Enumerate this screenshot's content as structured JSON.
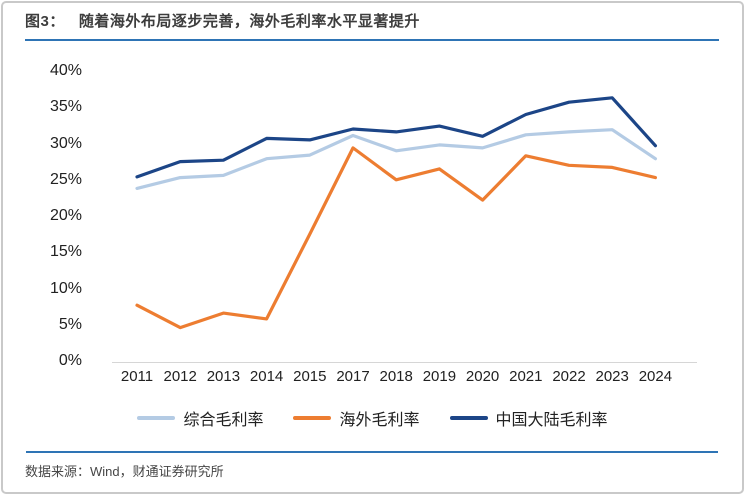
{
  "panel": {
    "figure_label": "图3：",
    "title": "随着海外布局逐步完善，海外毛利率水平显著提升",
    "source": "数据来源：Wind，财通证券研究所"
  },
  "colors": {
    "title_text": "#3d3d3d",
    "accent_rule": "#2e74b5",
    "frame_border": "#c9c9c9",
    "axis_line": "#d6d6d6",
    "series_composite": "#b4cbe4",
    "series_overseas": "#ed7d31",
    "series_mainland": "#1c4587"
  },
  "chart_data": {
    "type": "line",
    "title": "随着海外布局逐步完善，海外毛利率水平显著提升",
    "xlabel": "",
    "ylabel": "",
    "ylim": [
      0,
      40
    ],
    "y_tick_labels": [
      "40%",
      "35%",
      "30%",
      "25%",
      "20%",
      "15%",
      "10%",
      "5%",
      "0%"
    ],
    "grid": false,
    "legend_position": "bottom",
    "categories": [
      "2011",
      "2012",
      "2013",
      "2014",
      "2015",
      "2017",
      "2018",
      "2019",
      "2020",
      "2021",
      "2022",
      "2023",
      "2024"
    ],
    "series": [
      {
        "name": "综合毛利率",
        "color": "#b4cbe4",
        "values": [
          23.8,
          25.3,
          25.6,
          27.9,
          28.4,
          31.1,
          29.0,
          29.8,
          29.4,
          31.2,
          31.6,
          31.9,
          27.9
        ]
      },
      {
        "name": "海外毛利率",
        "color": "#ed7d31",
        "values": [
          7.7,
          4.6,
          6.6,
          5.8,
          17.5,
          29.4,
          25.0,
          26.5,
          22.2,
          28.3,
          27.0,
          26.7,
          25.3
        ]
      },
      {
        "name": "中国大陆毛利率",
        "color": "#1c4587",
        "values": [
          25.4,
          27.5,
          27.7,
          30.7,
          30.5,
          32.0,
          31.6,
          32.4,
          31.0,
          34.0,
          35.7,
          36.3,
          29.7
        ]
      }
    ]
  }
}
